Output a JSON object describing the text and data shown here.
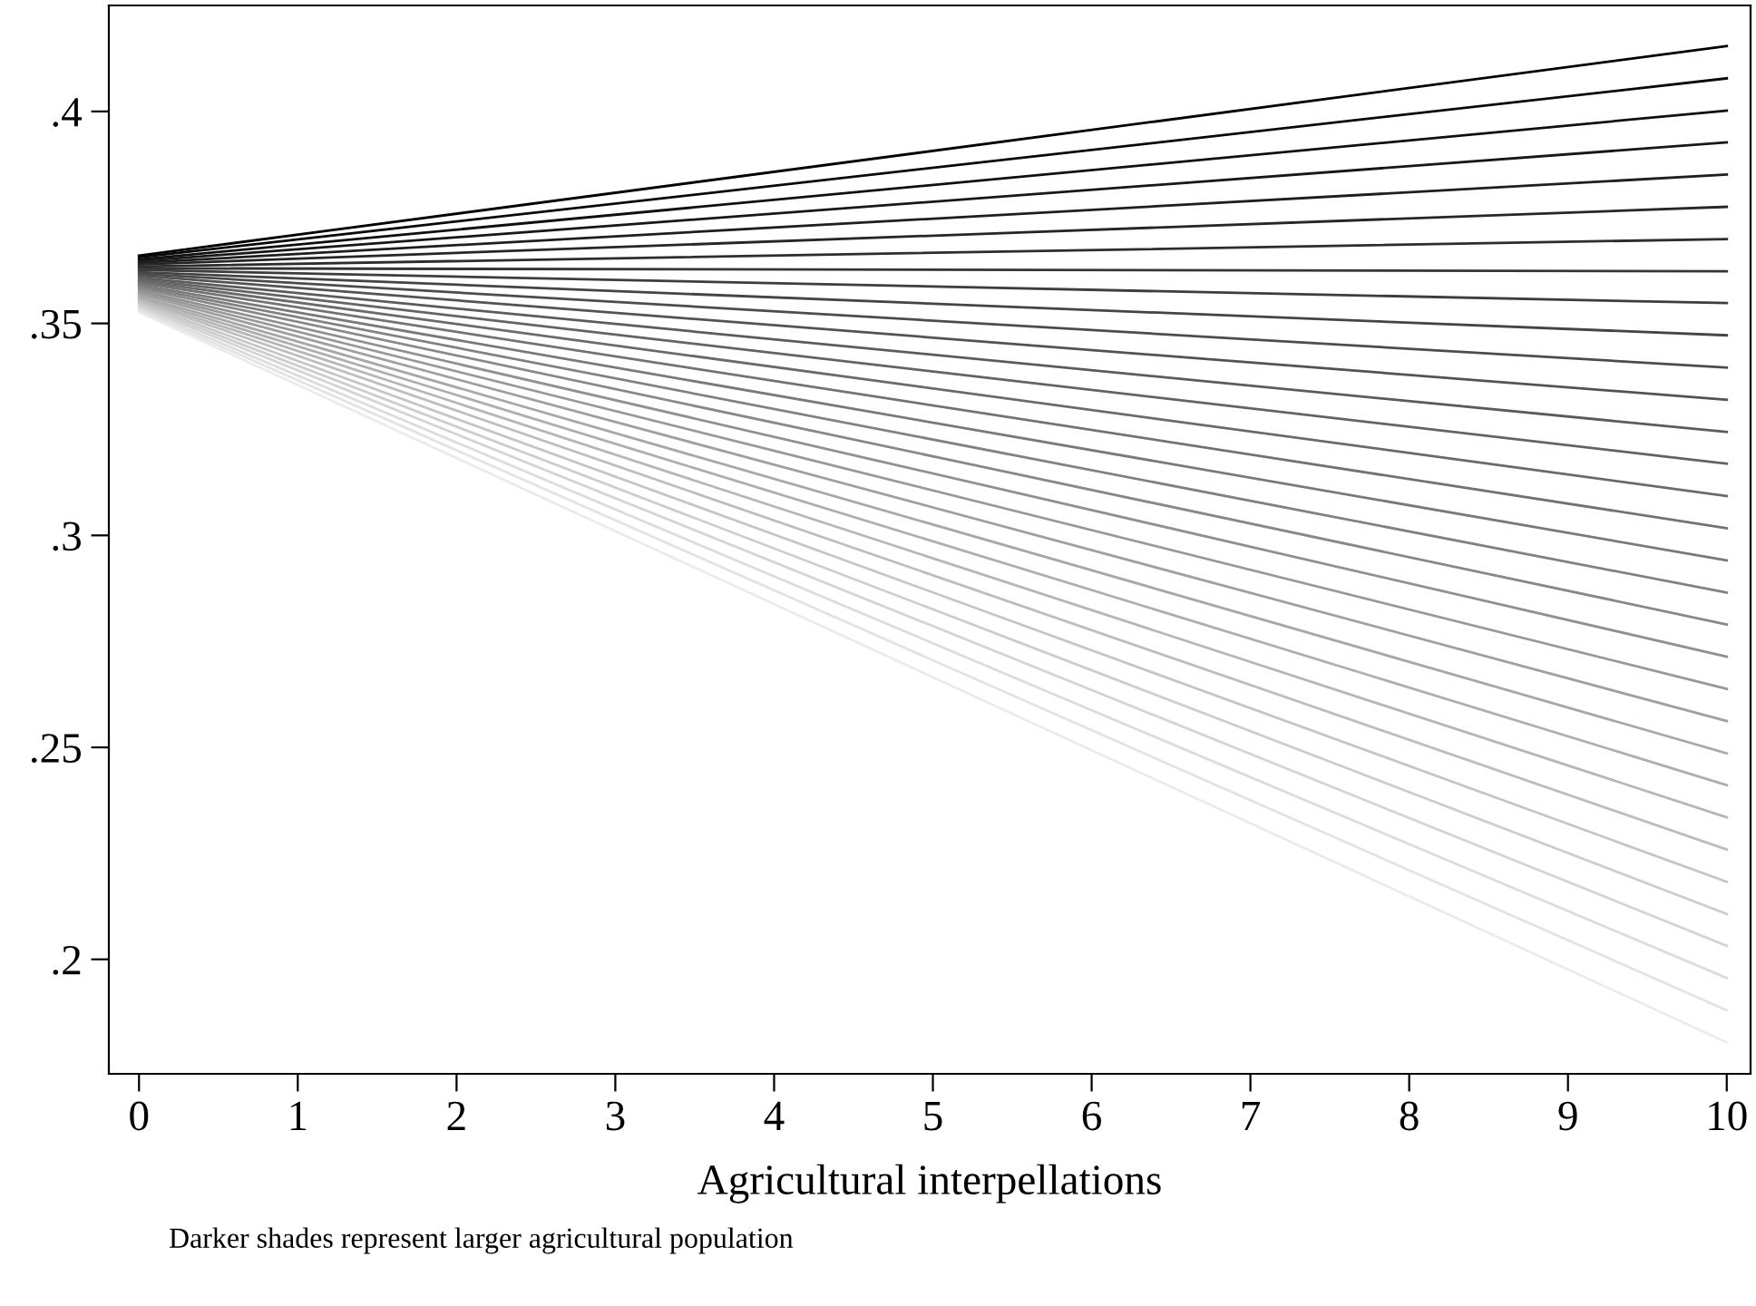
{
  "chart_data": {
    "type": "line",
    "xlabel": "Agricultural interpellations",
    "annotations": [
      "Darker shades represent larger agricultural population"
    ],
    "x": [
      0,
      10
    ],
    "series": [
      {
        "color": "#000000",
        "values": [
          0.366,
          0.4154
        ]
      },
      {
        "color": "#080808",
        "values": [
          0.3656,
          0.4078
        ]
      },
      {
        "color": "#0f0f0f",
        "values": [
          0.3651,
          0.4002
        ]
      },
      {
        "color": "#171717",
        "values": [
          0.3647,
          0.3927
        ]
      },
      {
        "color": "#1e1e1e",
        "values": [
          0.3643,
          0.3851
        ]
      },
      {
        "color": "#262626",
        "values": [
          0.3639,
          0.3775
        ]
      },
      {
        "color": "#2d2d2d",
        "values": [
          0.3634,
          0.3699
        ]
      },
      {
        "color": "#353535",
        "values": [
          0.363,
          0.3623
        ]
      },
      {
        "color": "#3d3d3d",
        "values": [
          0.3626,
          0.3548
        ]
      },
      {
        "color": "#444444",
        "values": [
          0.3621,
          0.3472
        ]
      },
      {
        "color": "#4c4c4c",
        "values": [
          0.3617,
          0.3396
        ]
      },
      {
        "color": "#535353",
        "values": [
          0.3613,
          0.332
        ]
      },
      {
        "color": "#5b5b5b",
        "values": [
          0.3608,
          0.3244
        ]
      },
      {
        "color": "#636363",
        "values": [
          0.3604,
          0.3169
        ]
      },
      {
        "color": "#6a6a6a",
        "values": [
          0.36,
          0.3093
        ]
      },
      {
        "color": "#727272",
        "values": [
          0.3596,
          0.3017
        ]
      },
      {
        "color": "#797979",
        "values": [
          0.3591,
          0.2941
        ]
      },
      {
        "color": "#818181",
        "values": [
          0.3587,
          0.2865
        ]
      },
      {
        "color": "#888888",
        "values": [
          0.3583,
          0.279
        ]
      },
      {
        "color": "#909090",
        "values": [
          0.3578,
          0.2714
        ]
      },
      {
        "color": "#989898",
        "values": [
          0.3574,
          0.2638
        ]
      },
      {
        "color": "#9f9f9f",
        "values": [
          0.357,
          0.2562
        ]
      },
      {
        "color": "#a7a7a7",
        "values": [
          0.3565,
          0.2486
        ]
      },
      {
        "color": "#aeaeae",
        "values": [
          0.3561,
          0.2411
        ]
      },
      {
        "color": "#b6b6b6",
        "values": [
          0.3557,
          0.2335
        ]
      },
      {
        "color": "#bdbdbd",
        "values": [
          0.3553,
          0.2259
        ]
      },
      {
        "color": "#c5c5c5",
        "values": [
          0.3548,
          0.2183
        ]
      },
      {
        "color": "#cdcdcd",
        "values": [
          0.3544,
          0.2107
        ]
      },
      {
        "color": "#d4d4d4",
        "values": [
          0.354,
          0.2032
        ]
      },
      {
        "color": "#dcdcdc",
        "values": [
          0.3535,
          0.1956
        ]
      },
      {
        "color": "#e3e3e3",
        "values": [
          0.3531,
          0.188
        ]
      },
      {
        "color": "#ebebeb",
        "values": [
          0.3527,
          0.1804
        ]
      }
    ],
    "xlim": [
      -0.19,
      10.15
    ],
    "ylim": [
      0.173,
      0.425
    ],
    "xticks": [
      0,
      1,
      2,
      3,
      4,
      5,
      6,
      7,
      8,
      9,
      10
    ],
    "yticks": [
      {
        "value": 0.2,
        "label": ".2"
      },
      {
        "value": 0.25,
        "label": ".25"
      },
      {
        "value": 0.3,
        "label": ".3"
      },
      {
        "value": 0.35,
        "label": ".35"
      },
      {
        "value": 0.4,
        "label": ".4"
      }
    ],
    "grid": false,
    "legend": false,
    "marker": "none",
    "line_style": "solid"
  }
}
